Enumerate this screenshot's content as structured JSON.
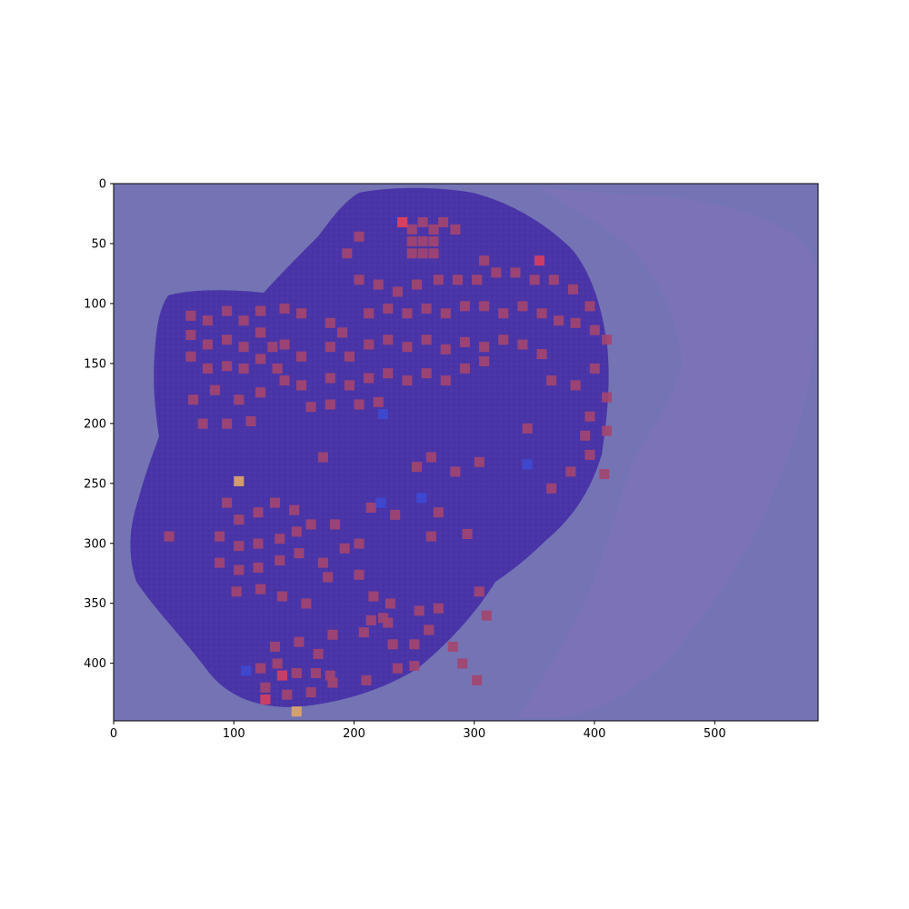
{
  "chart_data": {
    "type": "heatmap",
    "title": "",
    "xlabel": "",
    "ylabel": "",
    "xlim": [
      0,
      586
    ],
    "ylim": [
      448,
      0
    ],
    "xticks": [
      0,
      100,
      200,
      300,
      400,
      500
    ],
    "yticks": [
      0,
      50,
      100,
      150,
      200,
      250,
      300,
      350,
      400
    ],
    "grid": false,
    "legend": "none",
    "description_of_layers": "histology slide image with semi-transparent heatmap overlay",
    "colors": {
      "background": "#7474b4",
      "tissue": "#4a35a8",
      "tissue_dark": "#3a2a95",
      "stroma": "#8a6fc0",
      "hot": "#a4456e",
      "hot_bright": "#e0405a",
      "warm": "#d9a36a",
      "cold": "#3c4cd8"
    },
    "hot_cells": [
      [
        236,
        28
      ],
      [
        244,
        34
      ],
      [
        253,
        28
      ],
      [
        262,
        34
      ],
      [
        270,
        28
      ],
      [
        244,
        44
      ],
      [
        253,
        44
      ],
      [
        262,
        44
      ],
      [
        244,
        54
      ],
      [
        253,
        54
      ],
      [
        262,
        54
      ],
      [
        200,
        40
      ],
      [
        190,
        54
      ],
      [
        280,
        34
      ],
      [
        304,
        60
      ],
      [
        200,
        76
      ],
      [
        216,
        80
      ],
      [
        232,
        86
      ],
      [
        248,
        80
      ],
      [
        266,
        76
      ],
      [
        282,
        76
      ],
      [
        298,
        76
      ],
      [
        314,
        70
      ],
      [
        330,
        70
      ],
      [
        346,
        76
      ],
      [
        362,
        76
      ],
      [
        378,
        84
      ],
      [
        392,
        98
      ],
      [
        138,
        100
      ],
      [
        152,
        104
      ],
      [
        176,
        112
      ],
      [
        186,
        120
      ],
      [
        208,
        104
      ],
      [
        224,
        100
      ],
      [
        240,
        104
      ],
      [
        256,
        100
      ],
      [
        272,
        104
      ],
      [
        288,
        98
      ],
      [
        304,
        98
      ],
      [
        320,
        104
      ],
      [
        336,
        98
      ],
      [
        352,
        104
      ],
      [
        366,
        110
      ],
      [
        380,
        112
      ],
      [
        396,
        118
      ],
      [
        406,
        126
      ],
      [
        60,
        106
      ],
      [
        74,
        110
      ],
      [
        90,
        102
      ],
      [
        104,
        110
      ],
      [
        118,
        102
      ],
      [
        60,
        122
      ],
      [
        74,
        130
      ],
      [
        90,
        126
      ],
      [
        104,
        132
      ],
      [
        118,
        120
      ],
      [
        128,
        132
      ],
      [
        60,
        140
      ],
      [
        74,
        150
      ],
      [
        90,
        148
      ],
      [
        104,
        150
      ],
      [
        118,
        142
      ],
      [
        132,
        150
      ],
      [
        138,
        130
      ],
      [
        152,
        140
      ],
      [
        176,
        132
      ],
      [
        192,
        140
      ],
      [
        208,
        130
      ],
      [
        224,
        126
      ],
      [
        240,
        132
      ],
      [
        256,
        126
      ],
      [
        272,
        134
      ],
      [
        288,
        128
      ],
      [
        304,
        132
      ],
      [
        320,
        126
      ],
      [
        336,
        130
      ],
      [
        352,
        138
      ],
      [
        138,
        160
      ],
      [
        152,
        164
      ],
      [
        176,
        158
      ],
      [
        192,
        164
      ],
      [
        208,
        158
      ],
      [
        224,
        154
      ],
      [
        240,
        160
      ],
      [
        256,
        154
      ],
      [
        272,
        160
      ],
      [
        288,
        150
      ],
      [
        304,
        144
      ],
      [
        62,
        176
      ],
      [
        80,
        168
      ],
      [
        100,
        176
      ],
      [
        118,
        170
      ],
      [
        360,
        160
      ],
      [
        380,
        164
      ],
      [
        396,
        150
      ],
      [
        406,
        174
      ],
      [
        392,
        190
      ],
      [
        160,
        182
      ],
      [
        176,
        180
      ],
      [
        200,
        180
      ],
      [
        216,
        178
      ],
      [
        70,
        196
      ],
      [
        90,
        196
      ],
      [
        110,
        194
      ],
      [
        388,
        206
      ],
      [
        406,
        202
      ],
      [
        392,
        222
      ],
      [
        404,
        238
      ],
      [
        376,
        236
      ],
      [
        360,
        250
      ],
      [
        340,
        200
      ],
      [
        170,
        224
      ],
      [
        260,
        224
      ],
      [
        248,
        232
      ],
      [
        280,
        236
      ],
      [
        300,
        228
      ],
      [
        266,
        270
      ],
      [
        260,
        290
      ],
      [
        290,
        288
      ],
      [
        180,
        280
      ],
      [
        188,
        300
      ],
      [
        200,
        296
      ],
      [
        210,
        266
      ],
      [
        230,
        272
      ],
      [
        90,
        262
      ],
      [
        100,
        276
      ],
      [
        116,
        270
      ],
      [
        130,
        262
      ],
      [
        146,
        268
      ],
      [
        84,
        290
      ],
      [
        100,
        298
      ],
      [
        116,
        296
      ],
      [
        134,
        292
      ],
      [
        148,
        286
      ],
      [
        160,
        280
      ],
      [
        84,
        312
      ],
      [
        100,
        318
      ],
      [
        116,
        316
      ],
      [
        134,
        310
      ],
      [
        150,
        304
      ],
      [
        170,
        312
      ],
      [
        98,
        336
      ],
      [
        118,
        334
      ],
      [
        136,
        340
      ],
      [
        156,
        346
      ],
      [
        174,
        324
      ],
      [
        200,
        322
      ],
      [
        212,
        340
      ],
      [
        226,
        346
      ],
      [
        210,
        360
      ],
      [
        224,
        362
      ],
      [
        250,
        352
      ],
      [
        266,
        350
      ],
      [
        300,
        336
      ],
      [
        306,
        356
      ],
      [
        258,
        368
      ],
      [
        246,
        380
      ],
      [
        130,
        382
      ],
      [
        150,
        378
      ],
      [
        166,
        388
      ],
      [
        178,
        372
      ],
      [
        118,
        400
      ],
      [
        132,
        396
      ],
      [
        148,
        404
      ],
      [
        164,
        404
      ],
      [
        178,
        412
      ],
      [
        122,
        416
      ],
      [
        140,
        422
      ],
      [
        160,
        420
      ],
      [
        176,
        406
      ],
      [
        204,
        370
      ],
      [
        228,
        380
      ],
      [
        206,
        410
      ],
      [
        232,
        400
      ],
      [
        246,
        398
      ],
      [
        42,
        290
      ],
      [
        220,
        358
      ],
      [
        278,
        382
      ],
      [
        286,
        396
      ],
      [
        298,
        410
      ]
    ],
    "bright_cells": [
      [
        236,
        28
      ],
      [
        350,
        60
      ],
      [
        136,
        406
      ],
      [
        122,
        426
      ]
    ],
    "warm_cells": [
      [
        100,
        244
      ],
      [
        148,
        436
      ]
    ],
    "cold_cells": [
      [
        220,
        188
      ],
      [
        106,
        402
      ],
      [
        218,
        262
      ],
      [
        252,
        258
      ],
      [
        340,
        230
      ]
    ]
  }
}
